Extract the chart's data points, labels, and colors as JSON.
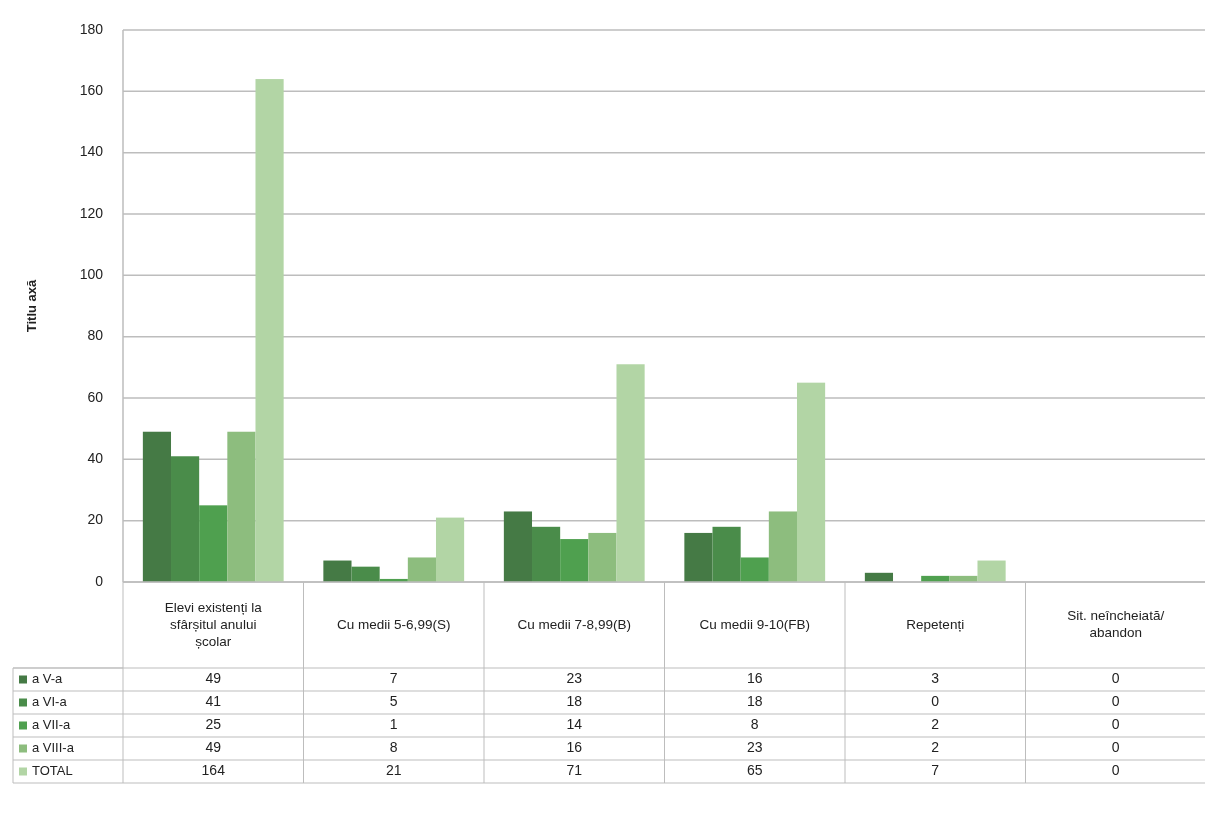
{
  "chart_data": {
    "type": "bar",
    "ylabel": "Titlu axă",
    "categories": [
      "Elevi existenți la sfârșitul anului școlar",
      "Cu medii 5-6,99(S)",
      "Cu medii 7-8,99(B)",
      "Cu medii 9-10(FB)",
      "Repetenți",
      "Sit. neîncheiată/ abandon"
    ],
    "series": [
      {
        "name": "a V-a",
        "color": "#457a45",
        "values": [
          49,
          7,
          23,
          16,
          3,
          0
        ]
      },
      {
        "name": "a VI-a",
        "color": "#4a8c4a",
        "values": [
          41,
          5,
          18,
          18,
          0,
          0
        ]
      },
      {
        "name": "a VII-a",
        "color": "#4fa04f",
        "values": [
          25,
          1,
          14,
          8,
          2,
          0
        ]
      },
      {
        "name": "a VIII-a",
        "color": "#8dbd7e",
        "values": [
          49,
          8,
          16,
          23,
          2,
          0
        ]
      },
      {
        "name": "TOTAL",
        "color": "#b2d5a5",
        "values": [
          164,
          21,
          71,
          65,
          7,
          0
        ]
      }
    ],
    "ylim": [
      0,
      180
    ],
    "yticks": [
      0,
      20,
      40,
      60,
      80,
      100,
      120,
      140,
      160,
      180
    ],
    "grid": true,
    "legend": "bottom",
    "data_labels": true
  }
}
